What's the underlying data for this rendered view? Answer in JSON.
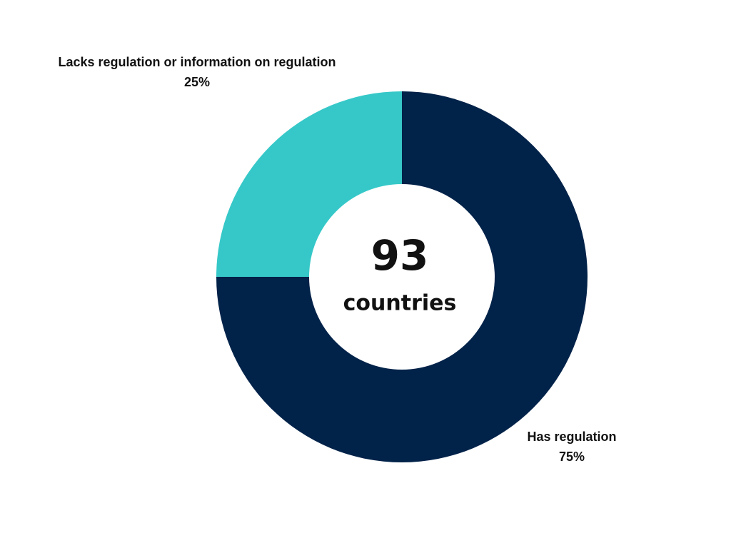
{
  "chart_data": {
    "type": "donut",
    "categories": [
      "Has regulation",
      "Lacks regulation or information on regulation"
    ],
    "values": [
      75,
      25
    ],
    "value_labels": [
      "75%",
      "25%"
    ],
    "colors": [
      "#012249",
      "#36c8c8"
    ],
    "center_value": 93,
    "center_text": "countries"
  }
}
